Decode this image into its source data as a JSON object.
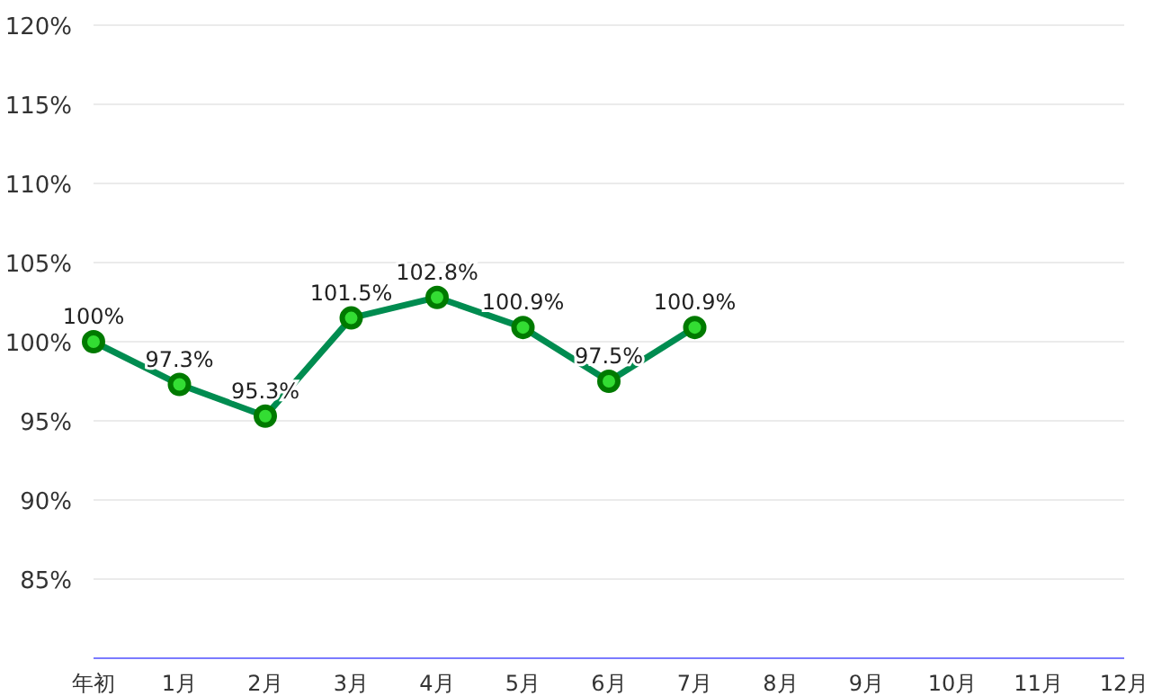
{
  "chart_data": {
    "type": "line",
    "categories": [
      "年初",
      "1月",
      "2月",
      "3月",
      "4月",
      "5月",
      "6月",
      "7月",
      "8月",
      "9月",
      "10月",
      "11月",
      "12月"
    ],
    "series": [
      {
        "color": "#008c50",
        "values": [
          100,
          97.3,
          95.3,
          101.5,
          102.8,
          100.9,
          97.5,
          100.9,
          null,
          null,
          null,
          null,
          null
        ],
        "value_labels": [
          "100%",
          "97.3%",
          "95.3%",
          "101.5%",
          "102.8%",
          "100.9%",
          "97.5%",
          "100.9%",
          null,
          null,
          null,
          null,
          null
        ]
      }
    ],
    "ylim": [
      80,
      120
    ],
    "yticks": [
      {
        "value": 85,
        "label": "85%"
      },
      {
        "value": 90,
        "label": "90%"
      },
      {
        "value": 95,
        "label": "95%"
      },
      {
        "value": 100,
        "label": "100%"
      },
      {
        "value": 105,
        "label": "105%"
      },
      {
        "value": 110,
        "label": "110%"
      },
      {
        "value": 115,
        "label": "115%"
      },
      {
        "value": 120,
        "label": "120%"
      }
    ],
    "grid": "y",
    "marker": "circle",
    "line_style": "solid"
  }
}
